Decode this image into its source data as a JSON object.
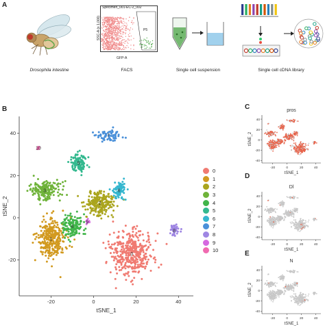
{
  "panelA": {
    "letter": "A",
    "captions": {
      "drosophila": "Drosophila intestine",
      "facs": "FACS",
      "suspension": "Single cell suspension",
      "library": "Single cell cDNA library"
    },
    "facs_plot": {
      "specimen": "Specimen_001-EC-2_002",
      "gate": "P5",
      "xlabel": "GFP-A",
      "ylabel": "SSC-A (x 1,000)"
    }
  },
  "panelB": {
    "letter": "B",
    "chart_data": {
      "type": "scatter",
      "xlabel": "tSNE_1",
      "ylabel": "tSNE_2",
      "xticks": [
        -20,
        0,
        20,
        40
      ],
      "yticks": [
        -20,
        0,
        20,
        40
      ],
      "xlim": [
        -35,
        47
      ],
      "ylim": [
        -37,
        48
      ],
      "legend_position": "right",
      "clusters": [
        {
          "name": "0",
          "color": "#f07b72",
          "center": [
            18,
            -17
          ],
          "spread": [
            9,
            9
          ],
          "count": 420
        },
        {
          "name": "1",
          "color": "#d29a20",
          "center": [
            -20,
            -10
          ],
          "spread": [
            6,
            9
          ],
          "count": 320
        },
        {
          "name": "2",
          "color": "#aaa51e",
          "center": [
            3,
            7
          ],
          "spread": [
            6,
            5
          ],
          "count": 220
        },
        {
          "name": "3",
          "color": "#6fb33a",
          "center": [
            -23,
            13
          ],
          "spread": [
            7,
            4
          ],
          "count": 190
        },
        {
          "name": "4",
          "color": "#41b54a",
          "center": [
            -10,
            -4
          ],
          "spread": [
            4,
            5
          ],
          "count": 140
        },
        {
          "name": "5",
          "color": "#34b98f",
          "center": [
            -7,
            26
          ],
          "spread": [
            3.5,
            4
          ],
          "count": 110
        },
        {
          "name": "6",
          "color": "#36b7cf",
          "center": [
            12,
            13
          ],
          "spread": [
            3,
            4
          ],
          "count": 90
        },
        {
          "name": "7",
          "color": "#4a90d9",
          "center": [
            7,
            39
          ],
          "spread": [
            5,
            3
          ],
          "count": 70
        },
        {
          "name": "8",
          "color": "#9f86e3",
          "center": [
            38,
            -6
          ],
          "spread": [
            2.3,
            2.2
          ],
          "count": 45
        },
        {
          "name": "9",
          "color": "#d669e0",
          "center": [
            -3,
            -2
          ],
          "spread": [
            0.7,
            0.7
          ],
          "count": 10
        },
        {
          "name": "10",
          "color": "#f06ab0",
          "center": [
            -26,
            33
          ],
          "spread": [
            0.7,
            0.6
          ],
          "count": 8
        }
      ]
    }
  },
  "featurePlots": [
    {
      "letter": "C",
      "gene": "pros",
      "xlabel": "tSNE_1",
      "ylabel": "tSNE_2",
      "xticks": [
        -20,
        0,
        20,
        40
      ],
      "yticks": [
        -40,
        -20,
        0,
        20,
        40
      ],
      "highlight": "high"
    },
    {
      "letter": "D",
      "gene": "Dl",
      "xlabel": "tSNE_1",
      "ylabel": "tSNE_2",
      "xticks": [
        -20,
        0,
        20,
        40
      ],
      "yticks": [
        -40,
        -20,
        0,
        20,
        40
      ],
      "highlight": "low"
    },
    {
      "letter": "E",
      "gene": "N",
      "xlabel": "tSNE_1",
      "ylabel": "tSNE_2",
      "xticks": [
        -20,
        0,
        20,
        40
      ],
      "yticks": [
        -40,
        -20,
        0,
        20,
        40
      ],
      "highlight": "minimal"
    }
  ],
  "colors": {
    "expr_high": "#e8634a",
    "expr_none": "#c8c8c8",
    "axis": "#333333"
  }
}
